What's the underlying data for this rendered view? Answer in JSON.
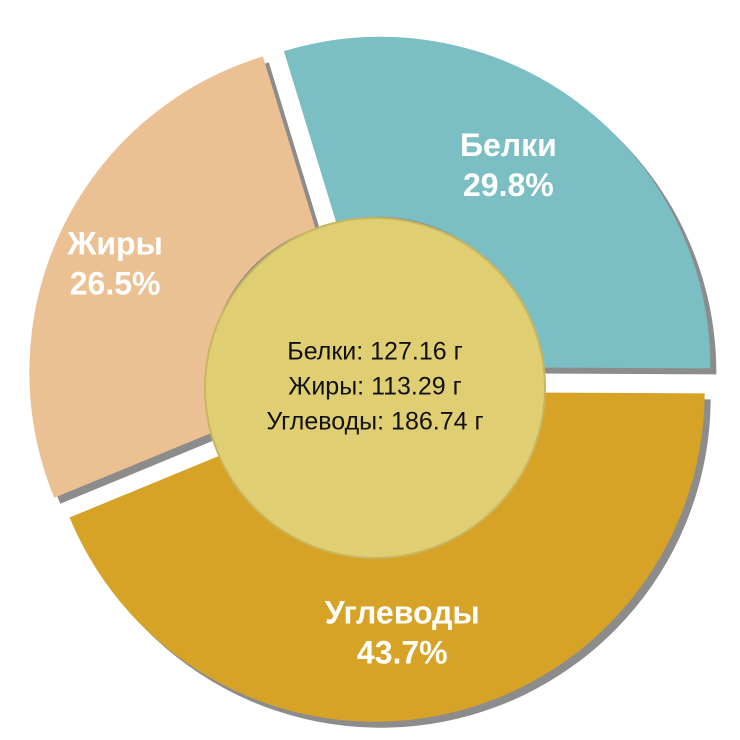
{
  "chart_data": {
    "type": "pie",
    "categories": [
      "Белки",
      "Углеводы",
      "Жиры"
    ],
    "values": [
      29.8,
      43.7,
      26.5
    ],
    "value_labels": [
      "29.8%",
      "43.7%",
      "26.5%"
    ],
    "colors": [
      "#7bbfc4",
      "#d7a326",
      "#ebc194"
    ],
    "center_lines": [
      "Белки: 127.16 г",
      "Жиры: 113.29 г",
      "Углеводы: 186.74 г"
    ]
  }
}
